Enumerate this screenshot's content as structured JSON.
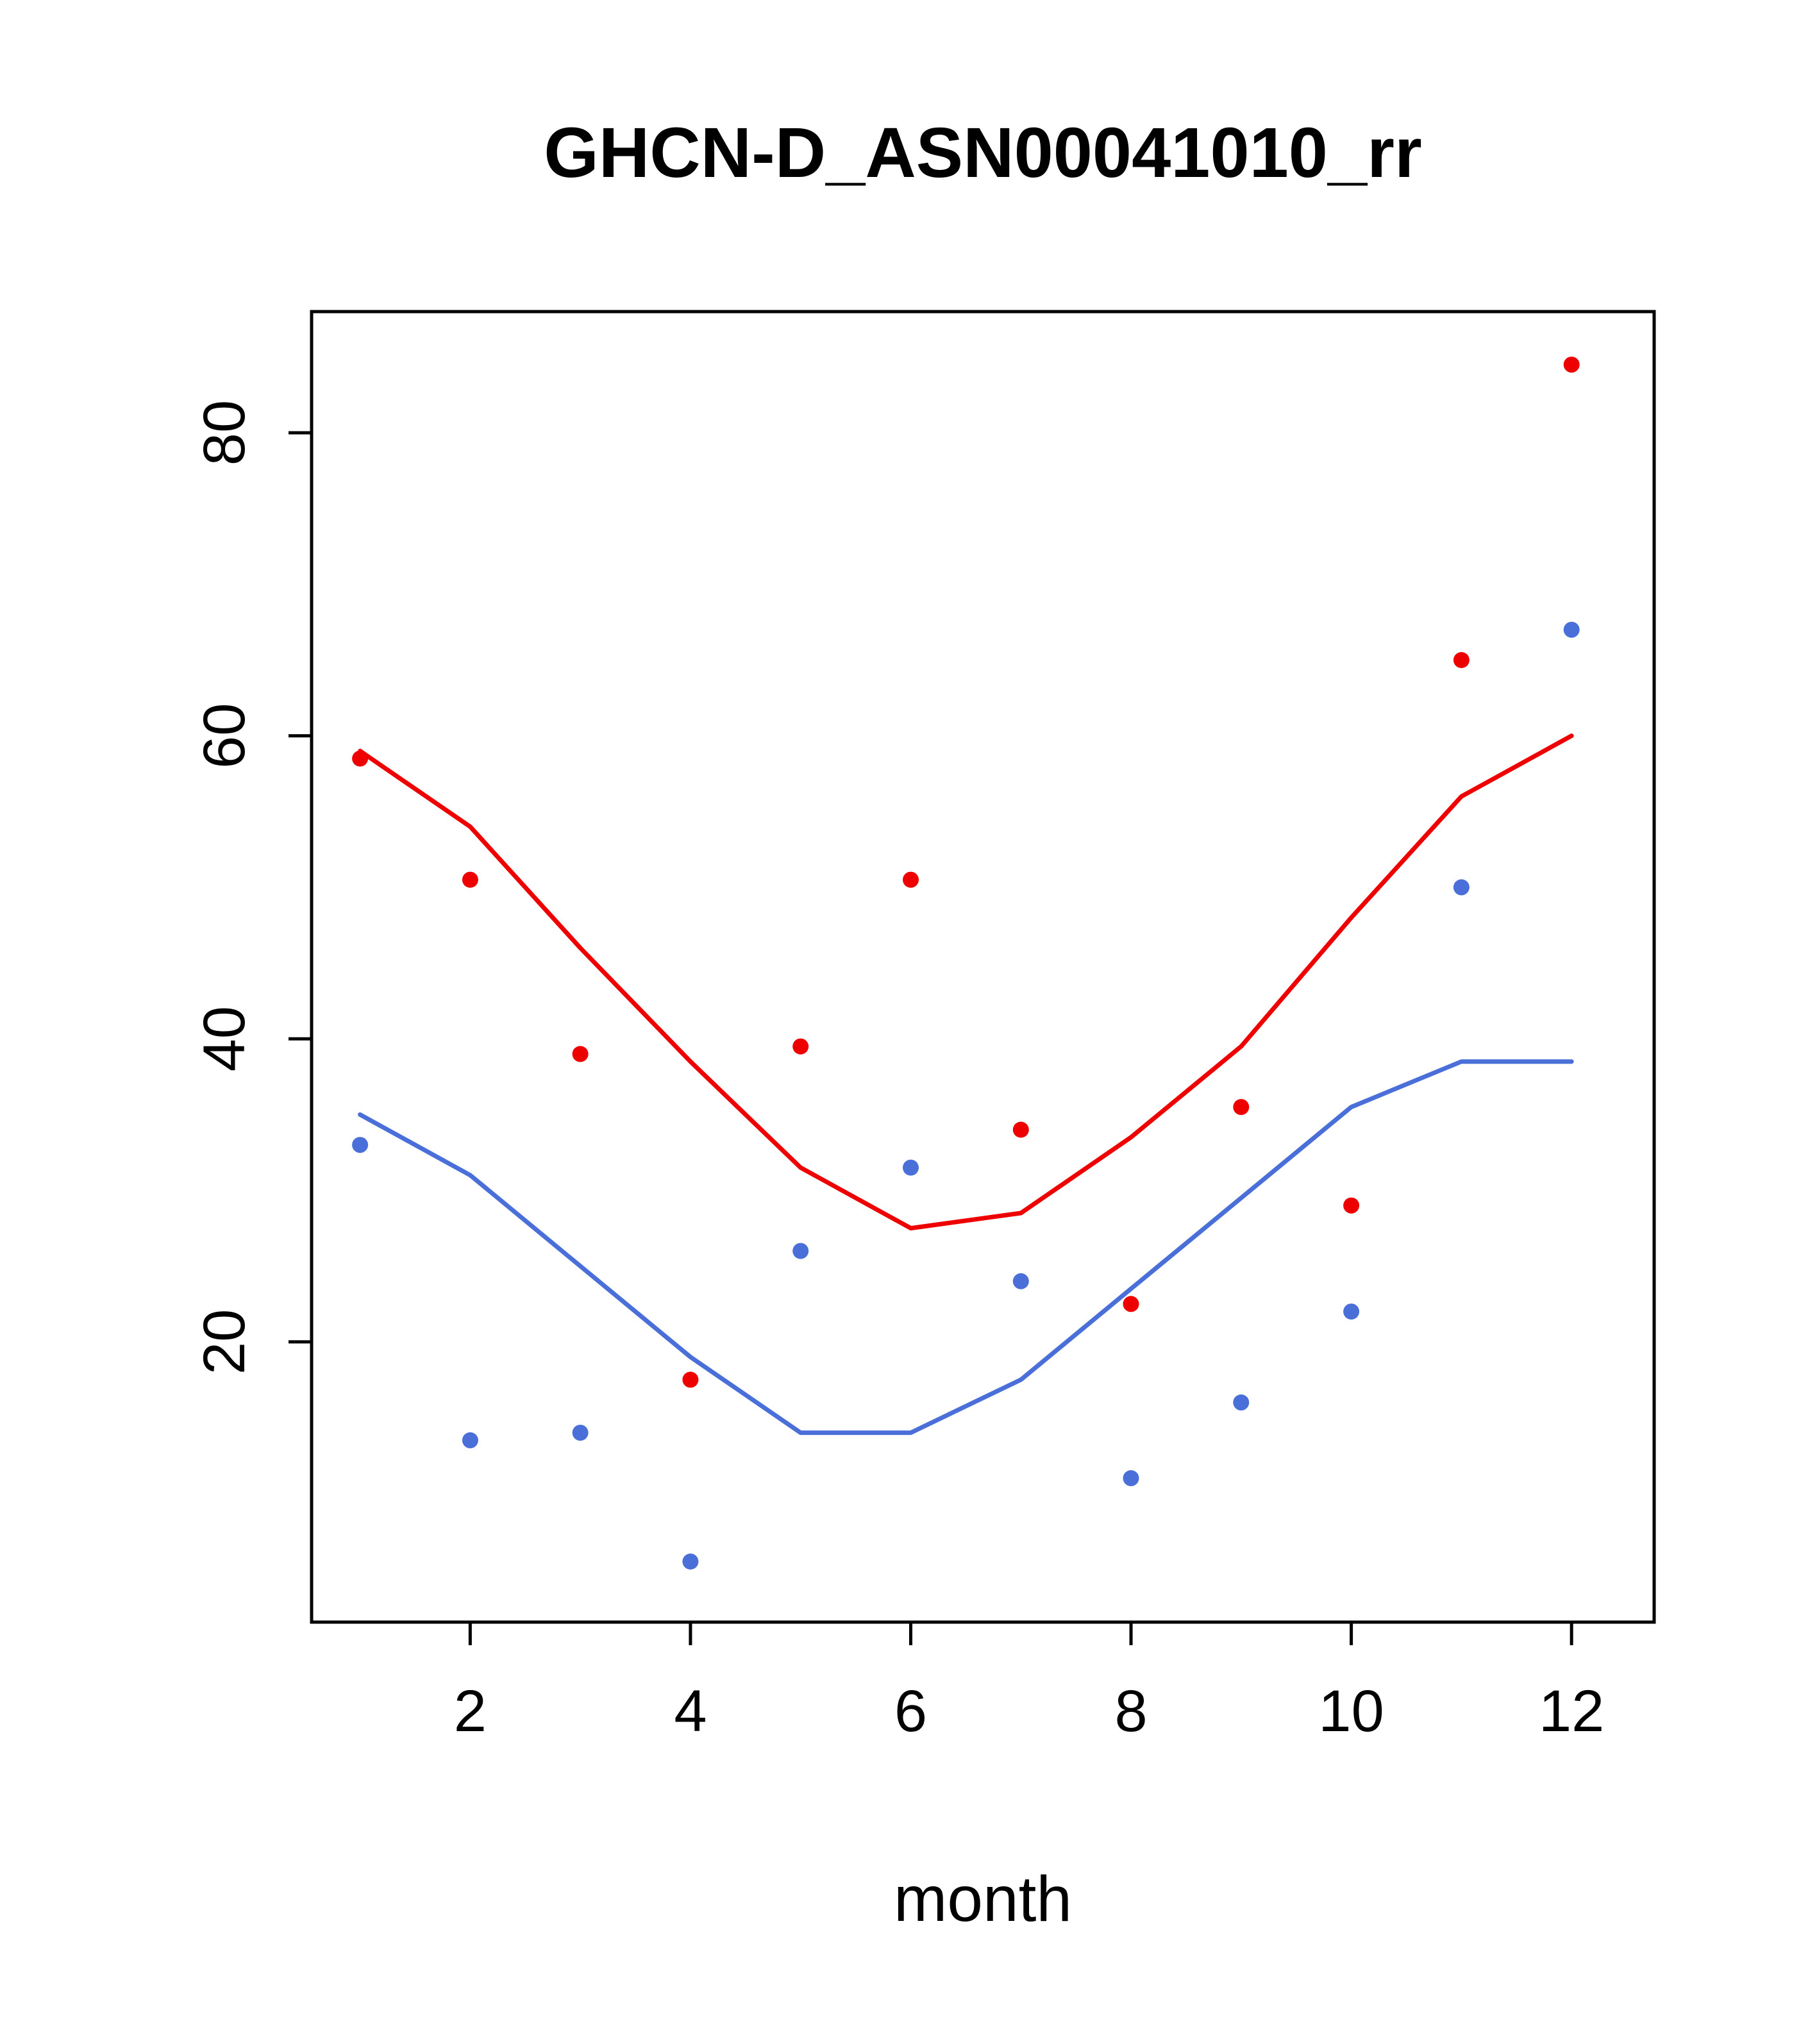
{
  "figure": {
    "background": "#ffffff",
    "axis_color": "#000000"
  },
  "chart_data": {
    "type": "scatter",
    "title": "GHCN-D_ASN00041010_rr",
    "xlabel": "month",
    "ylabel": "",
    "x": [
      1,
      2,
      3,
      4,
      5,
      6,
      7,
      8,
      9,
      10,
      11,
      12
    ],
    "xlim": [
      0.56,
      12.75
    ],
    "ylim": [
      1.5,
      88
    ],
    "x_ticks": [
      2,
      4,
      6,
      8,
      10,
      12
    ],
    "y_ticks": [
      20,
      40,
      60,
      80
    ],
    "grid": false,
    "legend": "none",
    "colors": {
      "red": "#EE0000",
      "blue": "#4A6FD8"
    },
    "series": [
      {
        "name": "red-points",
        "type": "points",
        "color": "#EE0000",
        "values": [
          58.5,
          50.5,
          39,
          17.5,
          39.5,
          50.5,
          34,
          22.5,
          35.5,
          29,
          65,
          84.5
        ]
      },
      {
        "name": "blue-points",
        "type": "points",
        "color": "#4A6FD8",
        "values": [
          33,
          13.5,
          14,
          5.5,
          26,
          31.5,
          24,
          11,
          16,
          22,
          50,
          67
        ]
      },
      {
        "name": "red-line",
        "type": "line",
        "color": "#EE0000",
        "values": [
          59,
          54,
          46,
          38.5,
          31.5,
          27.5,
          28.5,
          33.5,
          39.5,
          48,
          56,
          60
        ]
      },
      {
        "name": "blue-line",
        "type": "line",
        "color": "#4A6FD8",
        "values": [
          35,
          31,
          25,
          19,
          14,
          14,
          17.5,
          23.5,
          29.5,
          35.5,
          38.5,
          38.5
        ]
      }
    ]
  }
}
